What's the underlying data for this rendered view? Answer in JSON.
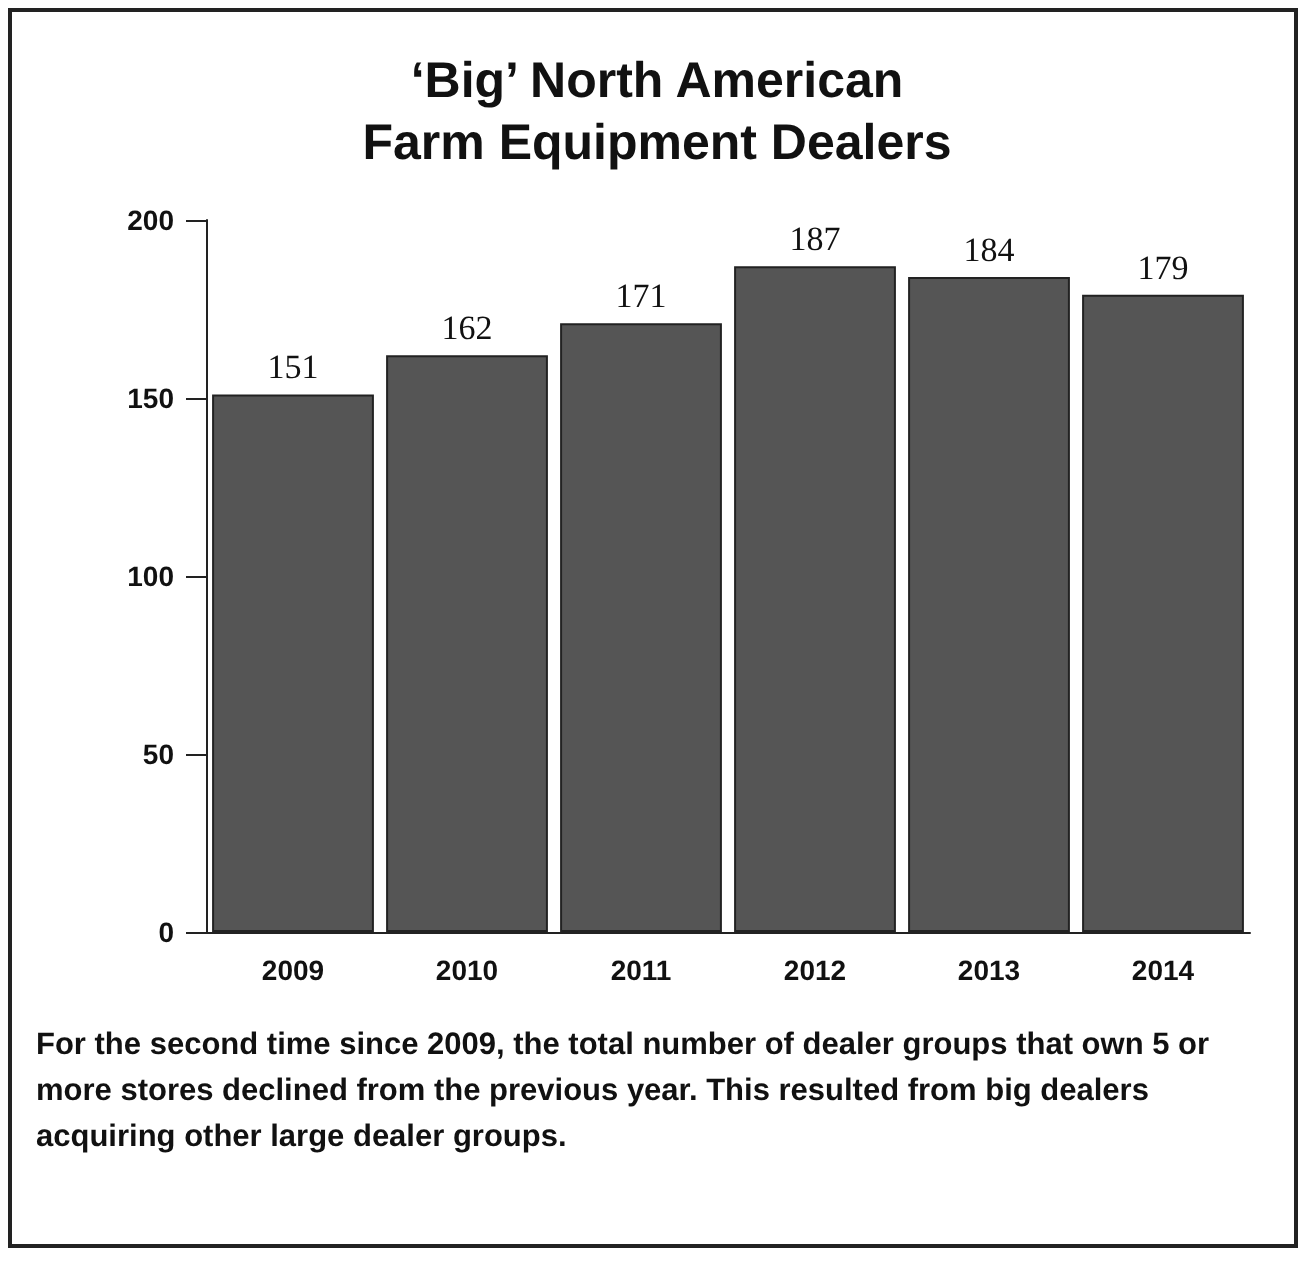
{
  "chart_data": {
    "type": "bar",
    "title": "‘Big’ North American\nFarm Equipment Dealers",
    "categories": [
      "2009",
      "2010",
      "2011",
      "2012",
      "2013",
      "2014"
    ],
    "values": [
      151,
      162,
      171,
      187,
      184,
      179
    ],
    "color": "#555555",
    "ylim": [
      0,
      200
    ],
    "yticks": [
      0,
      50,
      100,
      150,
      200
    ],
    "grid": false,
    "data_labels": true,
    "annotations": [
      "For the second time since 2009, the total number of dealer groups that own 5 or more stores declined from the previous year. This resulted from big dealers acquiring other large dealer groups."
    ]
  }
}
